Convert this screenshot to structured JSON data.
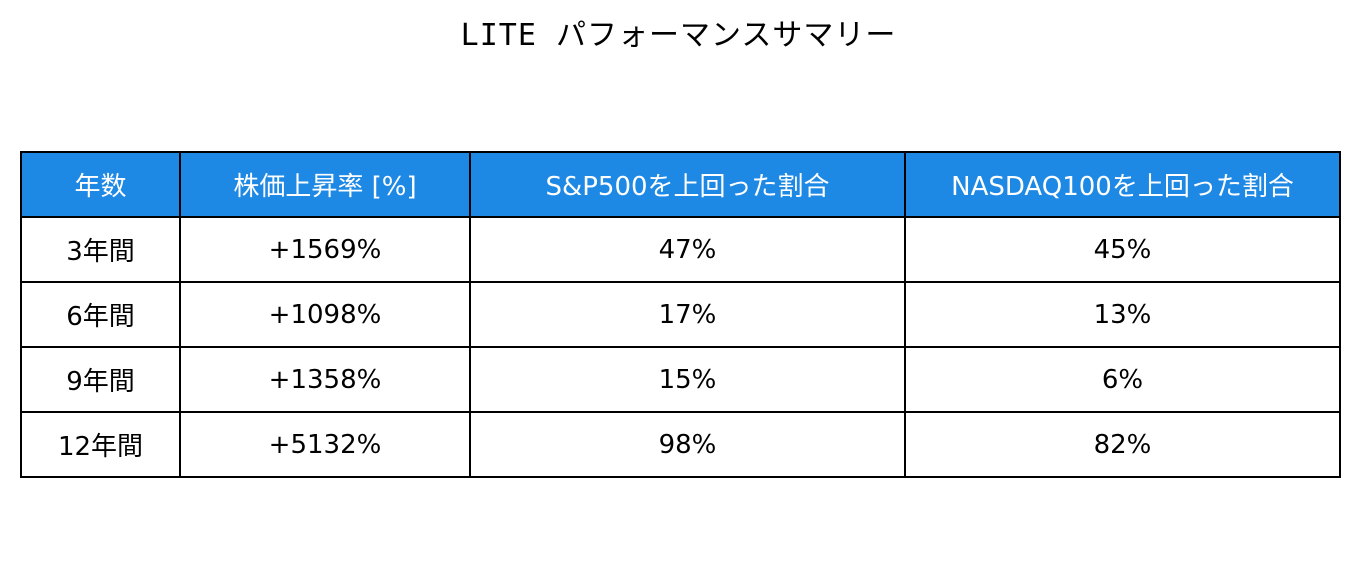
{
  "title": "LITE パフォーマンスサマリー",
  "colors": {
    "header_background": "#1e88e5",
    "header_text": "#ffffff",
    "border": "#000000"
  },
  "chart_data": {
    "type": "table",
    "title": "LITE パフォーマンスサマリー",
    "columns": [
      "年数",
      "株価上昇率 [%]",
      "S&P500を上回った割合",
      "NASDAQ100を上回った割合"
    ],
    "rows": [
      [
        "3年間",
        "+1569%",
        "47%",
        "45%"
      ],
      [
        "6年間",
        "+1098%",
        "17%",
        "13%"
      ],
      [
        "9年間",
        "+1358%",
        "15%",
        "6%"
      ],
      [
        "12年間",
        "+5132%",
        "98%",
        "82%"
      ]
    ]
  }
}
